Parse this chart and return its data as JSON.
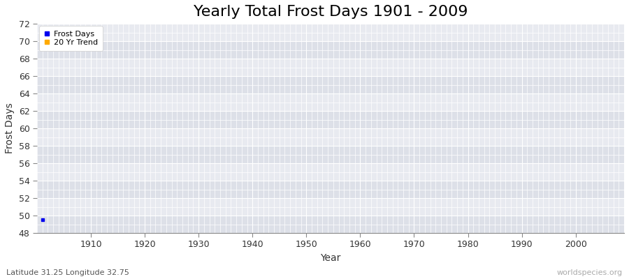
{
  "title": "Yearly Total Frost Days 1901 - 2009",
  "xlabel": "Year",
  "ylabel": "Frost Days",
  "subtitle": "Latitude 31.25 Longitude 32.75",
  "watermark": "worldspecies.org",
  "xlim": [
    1900,
    2009
  ],
  "ylim": [
    48,
    72
  ],
  "yticks": [
    48,
    50,
    52,
    54,
    56,
    58,
    60,
    62,
    64,
    66,
    68,
    70,
    72
  ],
  "xticks": [
    1910,
    1920,
    1930,
    1940,
    1950,
    1960,
    1970,
    1980,
    1990,
    2000
  ],
  "data_points": [
    [
      1901,
      49.5
    ]
  ],
  "data_color": "#0000ee",
  "trend_color": "#ffaa00",
  "background_color": "#e8eaf0",
  "band_color_light": "#dde0e8",
  "band_color_dark": "#e8eaf0",
  "grid_color": "#ffffff",
  "title_fontsize": 16,
  "axis_label_fontsize": 10,
  "tick_fontsize": 9,
  "subtitle_fontsize": 8,
  "watermark_fontsize": 8,
  "spine_color": "#888888"
}
